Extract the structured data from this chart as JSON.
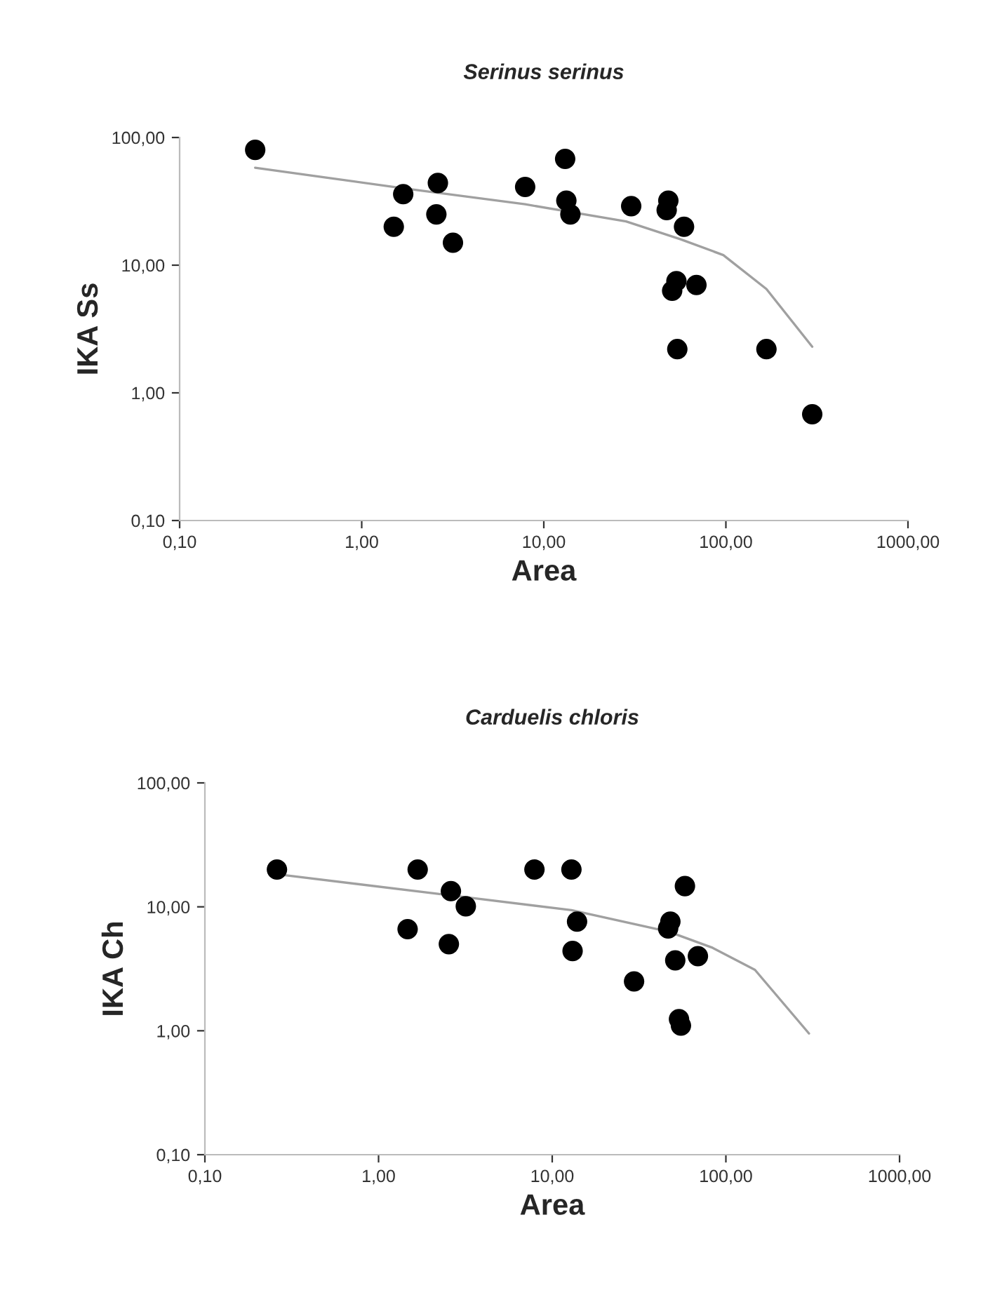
{
  "chart_data": [
    {
      "type": "scatter",
      "title": "Serinus serinus",
      "xlabel": "Area",
      "ylabel": "IKA Ss",
      "log": "xy",
      "marker": "circle",
      "grid": false,
      "xlim": [
        0.1,
        1000
      ],
      "ylim": [
        0.1,
        100
      ],
      "xticks": [
        {
          "value": 0.1,
          "label": "0,10"
        },
        {
          "value": 1,
          "label": "1,00"
        },
        {
          "value": 10,
          "label": "10,00"
        },
        {
          "value": 100,
          "label": "100,00"
        },
        {
          "value": 1000,
          "label": "1000,00"
        }
      ],
      "yticks": [
        {
          "value": 0.1,
          "label": "0,10"
        },
        {
          "value": 1,
          "label": "1,00"
        },
        {
          "value": 10,
          "label": "10,00"
        },
        {
          "value": 100,
          "label": "100,00"
        }
      ],
      "series": [
        {
          "color": "#000000",
          "x": [
            0.26,
            1.69,
            1.5,
            2.62,
            2.57,
            3.17,
            7.9,
            13.1,
            13.3,
            14.0,
            30.2,
            48.3,
            47.3,
            58.9,
            53.5,
            50.7,
            68.9,
            54.1,
            167,
            298
          ],
          "values": [
            80,
            36,
            20,
            44,
            25,
            15,
            41,
            68,
            32,
            25,
            29,
            32,
            27,
            20,
            7.5,
            6.3,
            7.0,
            2.2,
            2.2,
            0.68
          ]
        },
        {
          "type": "line",
          "color": "#a0a0a0",
          "marker": "none",
          "x": [
            0.26,
            1.69,
            7.9,
            28.3,
            56.1,
            96.8,
            167,
            298
          ],
          "values": [
            58,
            40,
            30,
            22,
            16,
            12,
            6.5,
            2.3
          ]
        }
      ]
    },
    {
      "type": "scatter",
      "title": "Carduelis chloris",
      "xlabel": "Area",
      "ylabel": "IKA Ch",
      "log": "xy",
      "marker": "circle",
      "grid": false,
      "xlim": [
        0.1,
        1000
      ],
      "ylim": [
        0.1,
        100
      ],
      "xticks": [
        {
          "value": 0.1,
          "label": "0,10"
        },
        {
          "value": 1,
          "label": "1,00"
        },
        {
          "value": 10,
          "label": "10,00"
        },
        {
          "value": 100,
          "label": "100,00"
        },
        {
          "value": 1000,
          "label": "1000,00"
        }
      ],
      "yticks": [
        {
          "value": 0.1,
          "label": "0,10"
        },
        {
          "value": 1,
          "label": "1,00"
        },
        {
          "value": 10,
          "label": "10,00"
        },
        {
          "value": 100,
          "label": "100,00"
        }
      ],
      "series": [
        {
          "color": "#000000",
          "x": [
            0.26,
            1.68,
            1.47,
            2.61,
            2.54,
            3.18,
            7.9,
            12.9,
            13.9,
            13.1,
            29.6,
            47.9,
            46.5,
            58.1,
            51.1,
            69,
            53.7,
            55.1
          ],
          "values": [
            20,
            20,
            6.6,
            13.4,
            5.0,
            10.1,
            20,
            20,
            7.6,
            4.4,
            2.5,
            7.6,
            6.7,
            14.7,
            3.7,
            4.0,
            1.24,
            1.1
          ]
        },
        {
          "type": "line",
          "color": "#a0a0a0",
          "marker": "none",
          "x": [
            0.29,
            3.1,
            12.9,
            46.9,
            83,
            147,
            301
          ],
          "values": [
            18,
            12,
            9.4,
            6.3,
            4.7,
            3.1,
            0.95
          ]
        }
      ]
    }
  ]
}
